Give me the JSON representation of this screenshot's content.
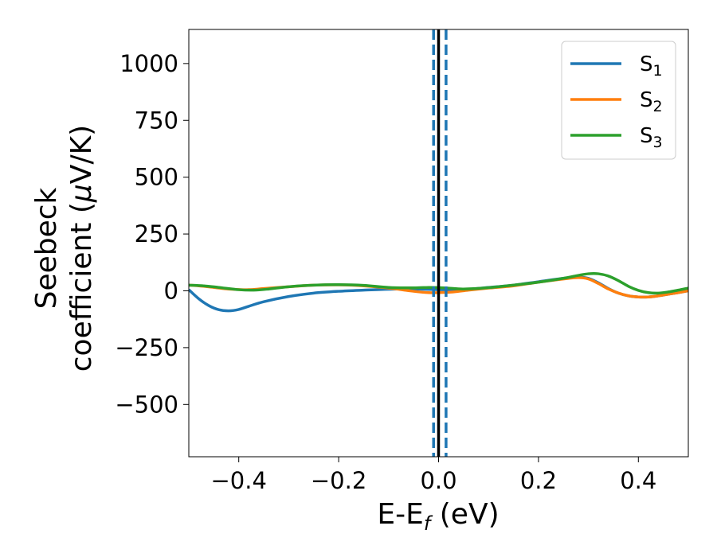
{
  "chart_data": {
    "type": "line",
    "xlabel": {
      "main": "E-E",
      "sub": "f",
      "tail": " (eV)"
    },
    "ylabel": {
      "line1": "Seebeck",
      "line2": "coefficient  (",
      "mu": "μ",
      "line2_tail": "V/K)"
    },
    "xlim": [
      -0.5,
      0.5
    ],
    "ylim": [
      -730,
      1150
    ],
    "xticks": [
      -0.4,
      -0.2,
      0.0,
      0.2,
      0.4
    ],
    "xtick_labels": [
      "−0.4",
      "−0.2",
      "0.0",
      "0.2",
      "0.4"
    ],
    "yticks": [
      -500,
      -250,
      0,
      250,
      500,
      750,
      1000
    ],
    "ytick_labels": [
      "−500",
      "−250",
      "0",
      "250",
      "500",
      "750",
      "1000"
    ],
    "grid": false,
    "legend_position": "upper right",
    "vertical_lines": [
      {
        "x": 0.0,
        "color": "#000000",
        "style": "solid"
      },
      {
        "x": -0.01,
        "color": "#1f77b4",
        "style": "dashed"
      },
      {
        "x": 0.015,
        "color": "#1f77b4",
        "style": "dashed"
      }
    ],
    "series": [
      {
        "name": "S",
        "sub": "1",
        "color": "#1f77b4",
        "points": [
          [
            -0.5,
            5
          ],
          [
            -0.48,
            -35
          ],
          [
            -0.46,
            -65
          ],
          [
            -0.44,
            -83
          ],
          [
            -0.42,
            -88
          ],
          [
            -0.4,
            -82
          ],
          [
            -0.38,
            -68
          ],
          [
            -0.35,
            -48
          ],
          [
            -0.3,
            -25
          ],
          [
            -0.25,
            -10
          ],
          [
            -0.2,
            -2
          ],
          [
            -0.15,
            3
          ],
          [
            -0.1,
            7
          ],
          [
            -0.05,
            8
          ],
          [
            0.0,
            5
          ],
          [
            0.05,
            5
          ],
          [
            0.1,
            15
          ],
          [
            0.15,
            25
          ],
          [
            0.2,
            40
          ],
          [
            0.25,
            55
          ],
          [
            0.28,
            60
          ],
          [
            0.3,
            55
          ],
          [
            0.32,
            35
          ],
          [
            0.34,
            10
          ],
          [
            0.36,
            -10
          ],
          [
            0.38,
            -22
          ],
          [
            0.4,
            -27
          ],
          [
            0.42,
            -27
          ],
          [
            0.44,
            -22
          ],
          [
            0.46,
            -15
          ],
          [
            0.48,
            -8
          ],
          [
            0.5,
            0
          ]
        ]
      },
      {
        "name": "S",
        "sub": "2",
        "color": "#ff7f0e",
        "points": [
          [
            -0.5,
            25
          ],
          [
            -0.48,
            22
          ],
          [
            -0.45,
            15
          ],
          [
            -0.42,
            8
          ],
          [
            -0.38,
            5
          ],
          [
            -0.35,
            10
          ],
          [
            -0.3,
            18
          ],
          [
            -0.25,
            25
          ],
          [
            -0.2,
            26
          ],
          [
            -0.15,
            22
          ],
          [
            -0.1,
            12
          ],
          [
            -0.05,
            -2
          ],
          [
            -0.02,
            -8
          ],
          [
            0.0,
            -8
          ],
          [
            0.03,
            -5
          ],
          [
            0.06,
            3
          ],
          [
            0.1,
            12
          ],
          [
            0.15,
            22
          ],
          [
            0.2,
            38
          ],
          [
            0.25,
            52
          ],
          [
            0.28,
            58
          ],
          [
            0.3,
            52
          ],
          [
            0.32,
            32
          ],
          [
            0.34,
            8
          ],
          [
            0.36,
            -10
          ],
          [
            0.38,
            -22
          ],
          [
            0.4,
            -27
          ],
          [
            0.42,
            -27
          ],
          [
            0.44,
            -22
          ],
          [
            0.46,
            -15
          ],
          [
            0.48,
            -8
          ],
          [
            0.5,
            0
          ]
        ]
      },
      {
        "name": "S",
        "sub": "3",
        "color": "#2ca02c",
        "points": [
          [
            -0.5,
            25
          ],
          [
            -0.47,
            22
          ],
          [
            -0.44,
            15
          ],
          [
            -0.4,
            5
          ],
          [
            -0.37,
            3
          ],
          [
            -0.34,
            8
          ],
          [
            -0.3,
            18
          ],
          [
            -0.25,
            25
          ],
          [
            -0.2,
            27
          ],
          [
            -0.15,
            24
          ],
          [
            -0.1,
            15
          ],
          [
            -0.05,
            13
          ],
          [
            -0.02,
            15
          ],
          [
            0.0,
            14
          ],
          [
            0.02,
            12
          ],
          [
            0.05,
            8
          ],
          [
            0.1,
            14
          ],
          [
            0.15,
            25
          ],
          [
            0.2,
            38
          ],
          [
            0.25,
            55
          ],
          [
            0.28,
            68
          ],
          [
            0.3,
            75
          ],
          [
            0.32,
            75
          ],
          [
            0.34,
            65
          ],
          [
            0.36,
            45
          ],
          [
            0.38,
            20
          ],
          [
            0.4,
            2
          ],
          [
            0.42,
            -8
          ],
          [
            0.44,
            -10
          ],
          [
            0.46,
            -5
          ],
          [
            0.48,
            3
          ],
          [
            0.5,
            12
          ]
        ]
      }
    ]
  }
}
